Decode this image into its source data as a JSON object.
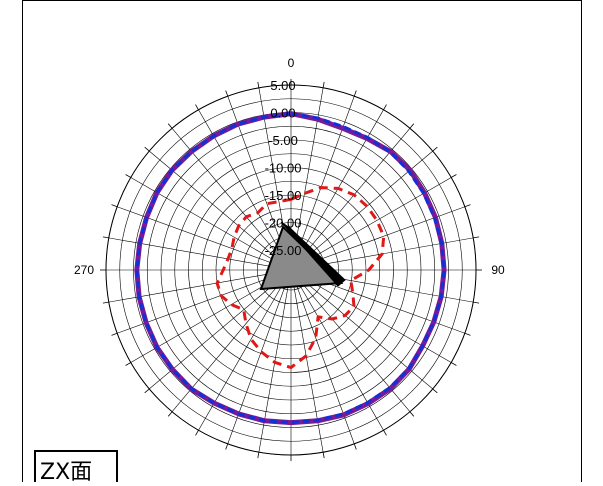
{
  "chart_data": {
    "type": "polar",
    "plane_label": "ZX面",
    "angle_labels": [
      {
        "angle": 0,
        "text": "0"
      },
      {
        "angle": 90,
        "text": "90"
      },
      {
        "angle": 270,
        "text": "270"
      }
    ],
    "radial_axis": {
      "range": [
        -25,
        5
      ],
      "ticks": [
        5,
        0,
        -5,
        -10,
        -15,
        -20,
        -25
      ],
      "tick_labels": [
        "5.00",
        "0.00",
        "-5.00",
        "-10.00",
        "-15.00",
        "-20.00",
        "-25.00"
      ]
    },
    "grid": true,
    "angular_grid_step_deg": 10,
    "series": [
      {
        "style": "solid",
        "color": "#7a1a96",
        "angles": [
          0,
          10,
          20,
          30,
          40,
          50,
          60,
          70,
          80,
          90,
          100,
          110,
          120,
          130,
          140,
          150,
          160,
          170,
          180,
          190,
          200,
          210,
          220,
          230,
          240,
          250,
          260,
          270,
          280,
          290,
          300,
          310,
          320,
          330,
          340,
          350
        ],
        "values": [
          -0.2,
          -0.8,
          -1.2,
          -1.0,
          -0.5,
          -0.4,
          -0.6,
          -0.7,
          -0.8,
          -0.8,
          -0.9,
          -1.0,
          -1.0,
          -0.6,
          -0.5,
          -0.6,
          -0.6,
          -0.8,
          -0.9,
          -0.8,
          -0.8,
          -0.7,
          -0.4,
          -0.5,
          -0.5,
          -0.6,
          -0.6,
          -0.6,
          -0.7,
          -0.7,
          -0.5,
          -0.4,
          -0.5,
          -0.5,
          -0.4,
          -0.4
        ]
      },
      {
        "style": "dashed",
        "color": "#1030d8",
        "angles": [
          0,
          10,
          20,
          30,
          40,
          50,
          60,
          70,
          80,
          90,
          100,
          110,
          120,
          130,
          140,
          150,
          160,
          170,
          180,
          190,
          200,
          210,
          220,
          230,
          240,
          250,
          260,
          270,
          280,
          290,
          300,
          310,
          320,
          330,
          340,
          350
        ],
        "values": [
          -0.2,
          -0.6,
          -0.9,
          -0.8,
          -0.6,
          -0.7,
          -0.8,
          -0.9,
          -0.8,
          -0.8,
          -0.9,
          -1.0,
          -1.0,
          -0.7,
          -0.7,
          -0.8,
          -0.8,
          -0.9,
          -0.9,
          -0.8,
          -0.8,
          -0.7,
          -0.5,
          -0.5,
          -0.5,
          -0.6,
          -0.6,
          -0.6,
          -0.7,
          -0.7,
          -0.5,
          -0.4,
          -0.5,
          -0.5,
          -0.4,
          -0.4
        ]
      },
      {
        "style": "dashed",
        "color": "#e01818",
        "angles": [
          0,
          10,
          20,
          30,
          40,
          50,
          60,
          70,
          80,
          90,
          100,
          110,
          120,
          130,
          140,
          150,
          160,
          170,
          180,
          190,
          200,
          210,
          220,
          230,
          240,
          250,
          260,
          270,
          280,
          290,
          300,
          310,
          320,
          330,
          340,
          350
        ],
        "values": [
          -15.8,
          -14.5,
          -12.7,
          -11.5,
          -10.8,
          -10.6,
          -10.6,
          -10.7,
          -11.8,
          -14.5,
          -17.6,
          -16.7,
          -15.4,
          -15.8,
          -17.0,
          -18.8,
          -15.5,
          -12.8,
          -10.9,
          -11.6,
          -12.8,
          -14.1,
          -15.9,
          -17.4,
          -16.1,
          -15.1,
          -15.0,
          -16.3,
          -17.0,
          -17.2,
          -16.7,
          -16.2,
          -16.0,
          -16.6,
          -15.8,
          -16.0
        ]
      }
    ],
    "marker": {
      "shape": "device-icon",
      "color": "#808080"
    }
  }
}
